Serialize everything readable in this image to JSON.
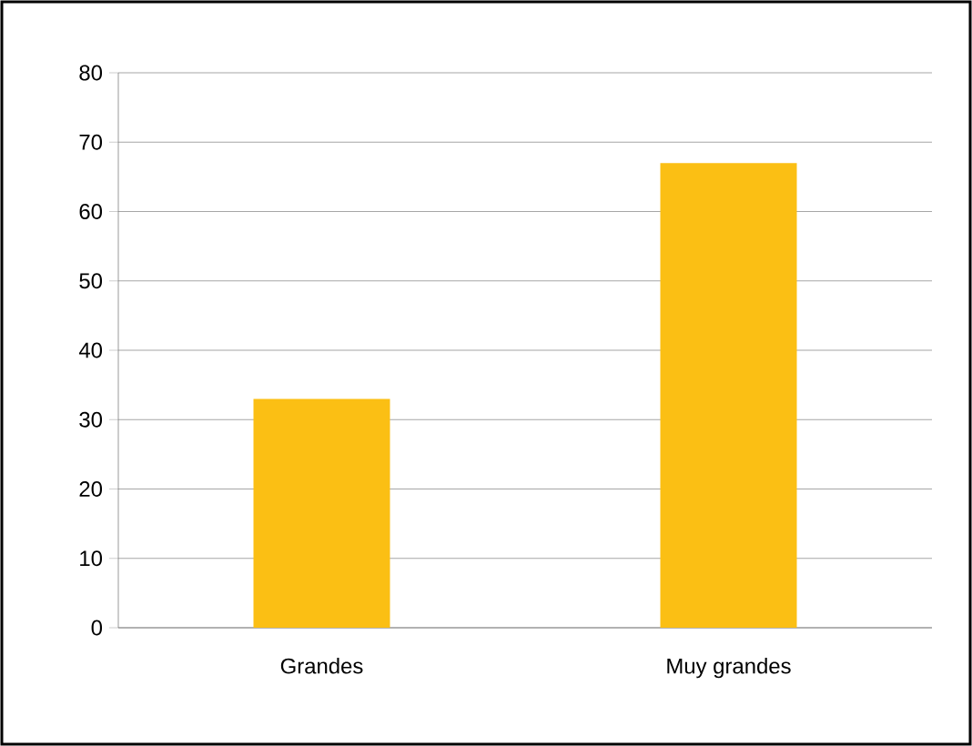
{
  "chart_data": {
    "type": "bar",
    "categories": [
      "Grandes",
      "Muy grandes"
    ],
    "values": [
      33,
      67
    ],
    "color": "#fbbf14",
    "ylim": [
      0,
      80
    ],
    "yticks": [
      0,
      10,
      20,
      30,
      40,
      50,
      60,
      70,
      80
    ],
    "grid": "y"
  }
}
